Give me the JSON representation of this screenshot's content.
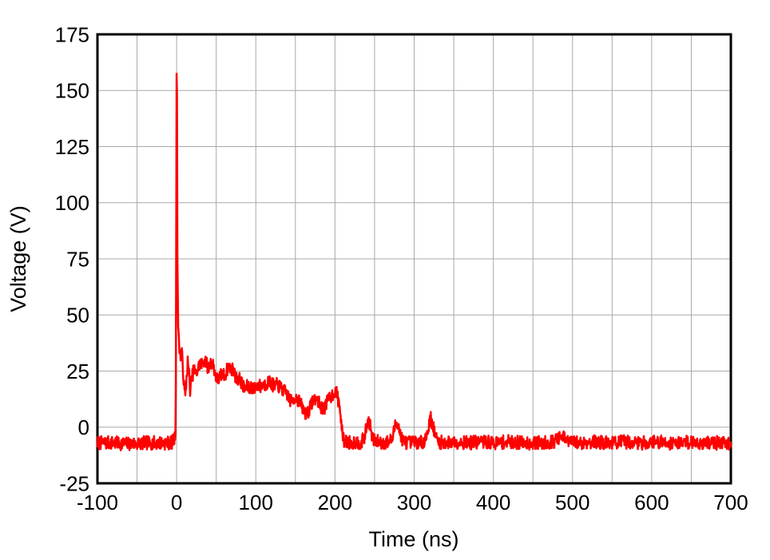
{
  "figure": {
    "background": "#ffffff",
    "border_color": "#000000",
    "grid_color": "#a9a9a9",
    "text_color": "#000000"
  },
  "chart_data": {
    "type": "line",
    "title": "",
    "xlabel": "Time (ns)",
    "ylabel": "Voltage (V)",
    "xlim": [
      -100,
      700
    ],
    "ylim": [
      -25,
      175
    ],
    "xticks": [
      -100,
      0,
      100,
      200,
      300,
      400,
      500,
      600,
      700
    ],
    "yticks": [
      -25,
      0,
      25,
      50,
      75,
      100,
      125,
      150,
      175
    ],
    "x_grid_step": 50,
    "y_grid_step": 25,
    "grid": true,
    "legend": false,
    "series": [
      {
        "name": "voltage-trace",
        "color": "#ff0000",
        "peak_v": 158,
        "peak_t": 0,
        "baseline_v": -7,
        "noise_amplitude": 3.1,
        "sample_step_ns": 0.5,
        "envelope": [
          [
            -100,
            -7
          ],
          [
            -80,
            -7
          ],
          [
            -60,
            -7.5
          ],
          [
            -40,
            -7
          ],
          [
            -20,
            -7
          ],
          [
            -10,
            -7
          ],
          [
            -5,
            -6.5
          ],
          [
            -2.5,
            -5
          ],
          [
            -1.2,
            -1
          ],
          [
            -0.6,
            70
          ],
          [
            0,
            158
          ],
          [
            0.5,
            148
          ],
          [
            1,
            75
          ],
          [
            2,
            45
          ],
          [
            3.5,
            36
          ],
          [
            5,
            31
          ],
          [
            6.5,
            33
          ],
          [
            8,
            26
          ],
          [
            9.5,
            18
          ],
          [
            11,
            13
          ],
          [
            12.5,
            22
          ],
          [
            14,
            29
          ],
          [
            15.5,
            24
          ],
          [
            17,
            17
          ],
          [
            18.5,
            20
          ],
          [
            20,
            23
          ],
          [
            22,
            26
          ],
          [
            24,
            23
          ],
          [
            26,
            25
          ],
          [
            28,
            27
          ],
          [
            30,
            29
          ],
          [
            32,
            28
          ],
          [
            34,
            29
          ],
          [
            36,
            31
          ],
          [
            38,
            28
          ],
          [
            40,
            26
          ],
          [
            42,
            28
          ],
          [
            44,
            29
          ],
          [
            46,
            28
          ],
          [
            48,
            25
          ],
          [
            50,
            22
          ],
          [
            52,
            21
          ],
          [
            54,
            22
          ],
          [
            56,
            23
          ],
          [
            58,
            24
          ],
          [
            60,
            23
          ],
          [
            62,
            24
          ],
          [
            64,
            26
          ],
          [
            66,
            27
          ],
          [
            68,
            26
          ],
          [
            70,
            26
          ],
          [
            72,
            25
          ],
          [
            74,
            23
          ],
          [
            76,
            21
          ],
          [
            78,
            22
          ],
          [
            80,
            21
          ],
          [
            82,
            20
          ],
          [
            84,
            18
          ],
          [
            86,
            17
          ],
          [
            88,
            18
          ],
          [
            90,
            18
          ],
          [
            92,
            17
          ],
          [
            94,
            18
          ],
          [
            96,
            18
          ],
          [
            98,
            17
          ],
          [
            100,
            18
          ],
          [
            103,
            19
          ],
          [
            106,
            18
          ],
          [
            109,
            19
          ],
          [
            112,
            19
          ],
          [
            115,
            20
          ],
          [
            118,
            20
          ],
          [
            121,
            19
          ],
          [
            124,
            18
          ],
          [
            127,
            19
          ],
          [
            130,
            18
          ],
          [
            133,
            17
          ],
          [
            136,
            16
          ],
          [
            139,
            15
          ],
          [
            142,
            13
          ],
          [
            145,
            11
          ],
          [
            148,
            13
          ],
          [
            151,
            13
          ],
          [
            154,
            12
          ],
          [
            157,
            10
          ],
          [
            160,
            8
          ],
          [
            163,
            6
          ],
          [
            166,
            7
          ],
          [
            169,
            9
          ],
          [
            172,
            12
          ],
          [
            175,
            13
          ],
          [
            178,
            12
          ],
          [
            181,
            10
          ],
          [
            184,
            8
          ],
          [
            187,
            9
          ],
          [
            190,
            11
          ],
          [
            193,
            13
          ],
          [
            196,
            14
          ],
          [
            199,
            16
          ],
          [
            202,
            15
          ],
          [
            205,
            11
          ],
          [
            207,
            6
          ],
          [
            209,
            -2
          ],
          [
            211,
            -6
          ],
          [
            215,
            -6.5
          ],
          [
            220,
            -7
          ],
          [
            226,
            -6.5
          ],
          [
            232,
            -7
          ],
          [
            237,
            -5
          ],
          [
            240,
            0
          ],
          [
            242,
            3
          ],
          [
            244,
            1.5
          ],
          [
            246,
            -3
          ],
          [
            249,
            -6
          ],
          [
            255,
            -6.5
          ],
          [
            262,
            -7
          ],
          [
            268,
            -6.5
          ],
          [
            273,
            -5
          ],
          [
            276,
            1
          ],
          [
            278,
            3
          ],
          [
            280,
            1
          ],
          [
            283,
            -4
          ],
          [
            287,
            -6.5
          ],
          [
            295,
            -7
          ],
          [
            303,
            -6.5
          ],
          [
            310,
            -7
          ],
          [
            315,
            -4.5
          ],
          [
            318,
            0
          ],
          [
            321,
            4
          ],
          [
            324,
            0
          ],
          [
            327,
            -4
          ],
          [
            330,
            -6.5
          ],
          [
            340,
            -7
          ],
          [
            355,
            -6.5
          ],
          [
            370,
            -7
          ],
          [
            385,
            -6.5
          ],
          [
            400,
            -7
          ],
          [
            420,
            -6.5
          ],
          [
            440,
            -7
          ],
          [
            460,
            -7
          ],
          [
            475,
            -6.5
          ],
          [
            484,
            -5
          ],
          [
            488,
            -4.5
          ],
          [
            493,
            -6
          ],
          [
            505,
            -7
          ],
          [
            525,
            -6.5
          ],
          [
            545,
            -7
          ],
          [
            565,
            -6.5
          ],
          [
            585,
            -7
          ],
          [
            605,
            -6.5
          ],
          [
            625,
            -7
          ],
          [
            645,
            -6.5
          ],
          [
            665,
            -7
          ],
          [
            685,
            -7
          ],
          [
            700,
            -7.5
          ]
        ]
      }
    ]
  }
}
